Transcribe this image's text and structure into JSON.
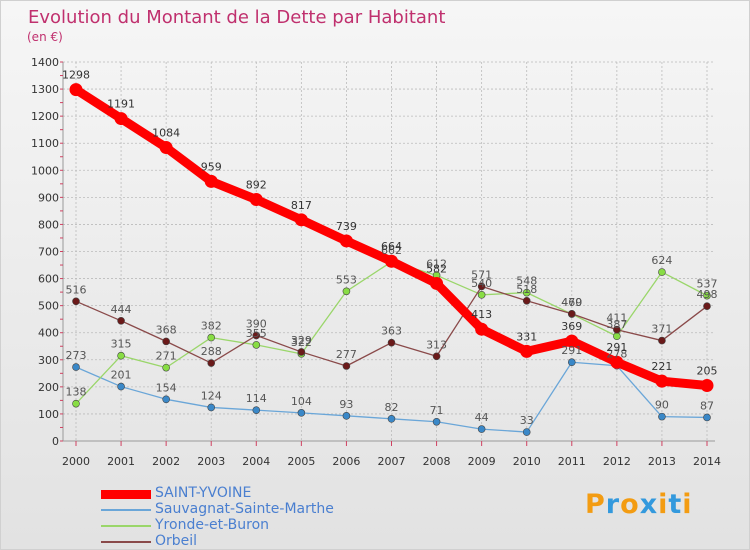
{
  "header": {
    "title": "Evolution du Montant de la Dette par Habitant",
    "subtitle": "(en €)"
  },
  "brand": {
    "text": "Proxiti",
    "letter_colors": [
      "#f39c12",
      "#3399dd",
      "#f39c12",
      "#3399dd",
      "#f39c12",
      "#3399dd",
      "#f39c12"
    ]
  },
  "chart_data": {
    "type": "line",
    "title": "Evolution du Montant de la Dette par Habitant",
    "subtitle": "(en €)",
    "xlabel": "",
    "ylabel": "",
    "x": [
      "2000",
      "2001",
      "2002",
      "2003",
      "2004",
      "2005",
      "2006",
      "2007",
      "2008",
      "2009",
      "2010",
      "2011",
      "2012",
      "2013",
      "2014"
    ],
    "ylim": [
      0,
      1400
    ],
    "yticks": [
      0,
      100,
      200,
      300,
      400,
      500,
      600,
      700,
      800,
      900,
      1000,
      1100,
      1200,
      1300,
      1400
    ],
    "grid": true,
    "legend_position": "bottom-left",
    "series": [
      {
        "name": "SAINT-YVOINE",
        "color": "#ff0000",
        "marker_color": "#ff0000",
        "width": 9,
        "marker_r": 6.5,
        "label_color": "#333333",
        "values": [
          1298,
          1191,
          1084,
          959,
          892,
          817,
          739,
          664,
          582,
          413,
          331,
          369,
          291,
          221,
          205
        ]
      },
      {
        "name": "Sauvagnat-Sainte-Marthe",
        "color": "#6aa6d8",
        "marker_color": "#3a88c8",
        "width": 1.3,
        "marker_r": 3.5,
        "label_color": "#555555",
        "values": [
          273,
          201,
          154,
          124,
          114,
          104,
          93,
          82,
          71,
          44,
          33,
          291,
          278,
          90,
          87
        ]
      },
      {
        "name": "Yronde-et-Buron",
        "color": "#9ad66a",
        "marker_color": "#88dd44",
        "width": 1.3,
        "marker_r": 3.5,
        "label_color": "#555555",
        "values": [
          138,
          315,
          271,
          382,
          355,
          322,
          553,
          662,
          612,
          540,
          548,
          469,
          387,
          624,
          537
        ]
      },
      {
        "name": "Orbeil",
        "color": "#8a4a4a",
        "marker_color": "#6b1a1a",
        "width": 1.3,
        "marker_r": 3.5,
        "label_color": "#555555",
        "values": [
          516,
          444,
          368,
          288,
          390,
          329,
          277,
          363,
          313,
          571,
          518,
          470,
          411,
          371,
          498
        ]
      }
    ]
  }
}
